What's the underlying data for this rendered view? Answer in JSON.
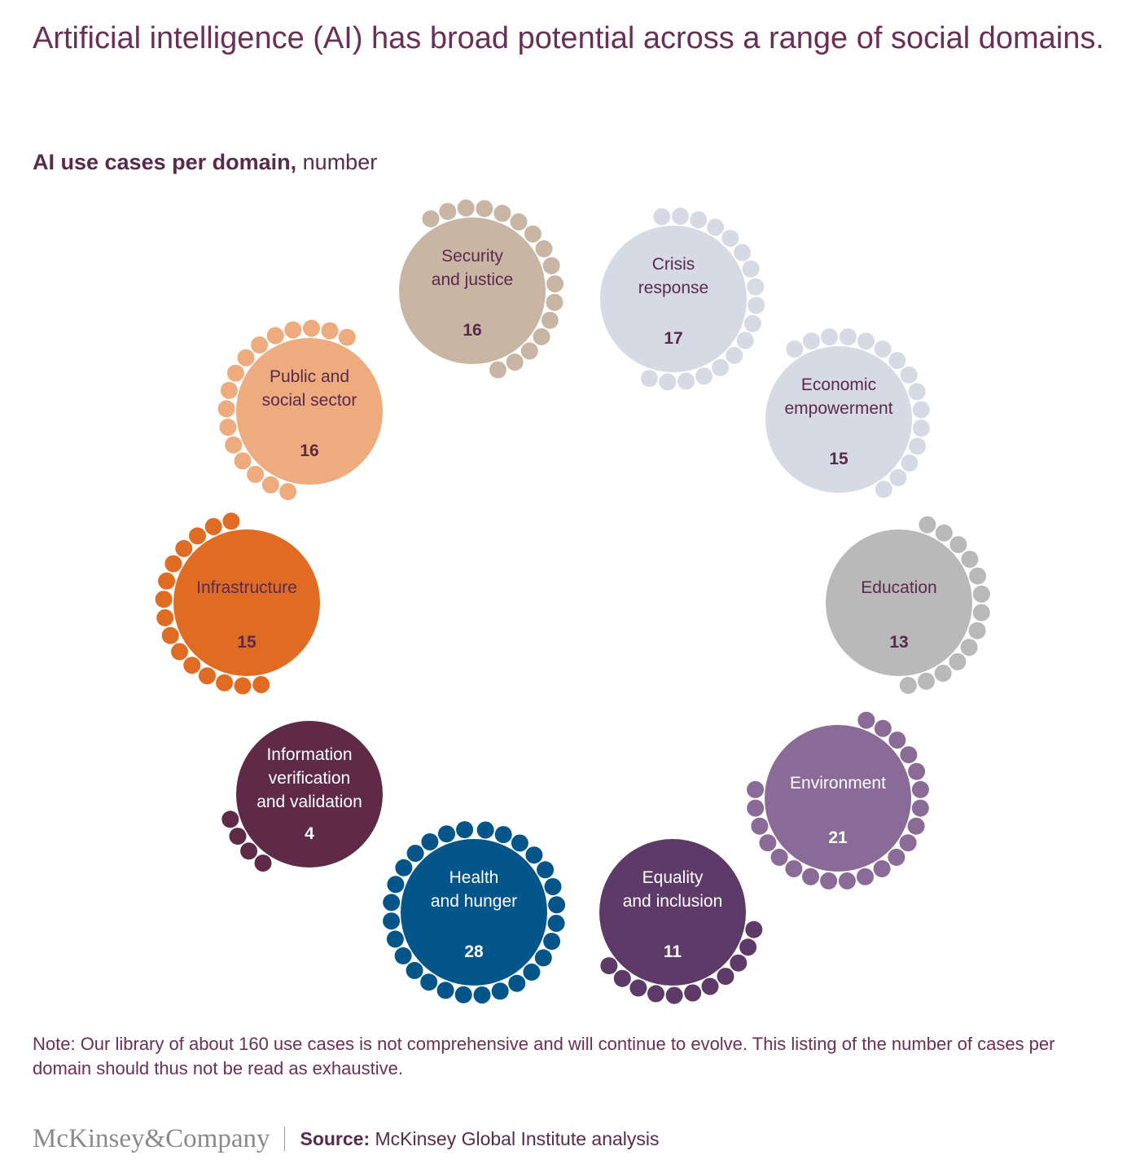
{
  "page": {
    "title": "Artificial intelligence (AI) has broad potential across a range of social domains.",
    "subtitle_bold": "AI use cases per domain,",
    "subtitle_unit": "number",
    "note": "Note: Our library of about 160 use cases is not comprehensive and will continue to evolve. This listing of the number of cases per domain should thus not be read as exhaustive.",
    "logo_text": "McKinsey&Company",
    "source_label": "Source:",
    "source_text": "McKinsey Global Institute analysis"
  },
  "chart_data": {
    "type": "bubble-ring",
    "title": "AI use cases per domain, number",
    "domains": [
      {
        "name": "Security and justice",
        "lines": [
          "Security",
          "and justice"
        ],
        "value": 16,
        "color": "#c9b5a4",
        "text_color": "#5a2a4c"
      },
      {
        "name": "Crisis response",
        "lines": [
          "Crisis",
          "response"
        ],
        "value": 17,
        "color": "#d6dae5",
        "text_color": "#5a2a4c"
      },
      {
        "name": "Economic empowerment",
        "lines": [
          "Economic",
          "empowerment"
        ],
        "value": 15,
        "color": "#d6dae5",
        "text_color": "#5a2a4c"
      },
      {
        "name": "Education",
        "lines": [
          "Education"
        ],
        "value": 13,
        "color": "#b9b9b9",
        "text_color": "#5a2a4c"
      },
      {
        "name": "Environment",
        "lines": [
          "Environment"
        ],
        "value": 21,
        "color": "#8a6a97",
        "text_color": "#ffffff"
      },
      {
        "name": "Equality and inclusion",
        "lines": [
          "Equality",
          "and inclusion"
        ],
        "value": 11,
        "color": "#5e3a68",
        "text_color": "#ffffff"
      },
      {
        "name": "Health and hunger",
        "lines": [
          "Health",
          "and hunger"
        ],
        "value": 28,
        "color": "#04558a",
        "text_color": "#ffffff"
      },
      {
        "name": "Information verification and validation",
        "lines": [
          "Information",
          "verification",
          "and validation"
        ],
        "value": 4,
        "color": "#5e2a47",
        "text_color": "#ffffff"
      },
      {
        "name": "Infrastructure",
        "lines": [
          "Infrastructure"
        ],
        "value": 15,
        "color": "#e06c24",
        "text_color": "#5a2a4c"
      },
      {
        "name": "Public and social sector",
        "lines": [
          "Public and",
          "social sector"
        ],
        "value": 16,
        "color": "#eeab7e",
        "text_color": "#5a2a4c"
      }
    ]
  }
}
